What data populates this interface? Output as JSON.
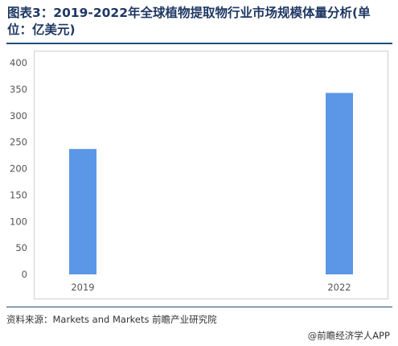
{
  "title": "图表3：2019-2022年全球植物提取物行业市场规模体量分析(单位：亿美元)",
  "source": "资料来源：Markets and Markets 前瞻产业研究院",
  "credit": "@前瞻经济学人APP",
  "watermark": "前瞻产业研究院",
  "colors": {
    "bar": "#5b97e6",
    "title": "#1f3864"
  },
  "chart_data": {
    "type": "bar",
    "categories": [
      "2019",
      "2022"
    ],
    "values": [
      237,
      343
    ],
    "ylim": [
      0,
      400
    ],
    "yticks": [
      0,
      50,
      100,
      150,
      200,
      250,
      300,
      350,
      400
    ],
    "grid": false,
    "legend": "none"
  }
}
